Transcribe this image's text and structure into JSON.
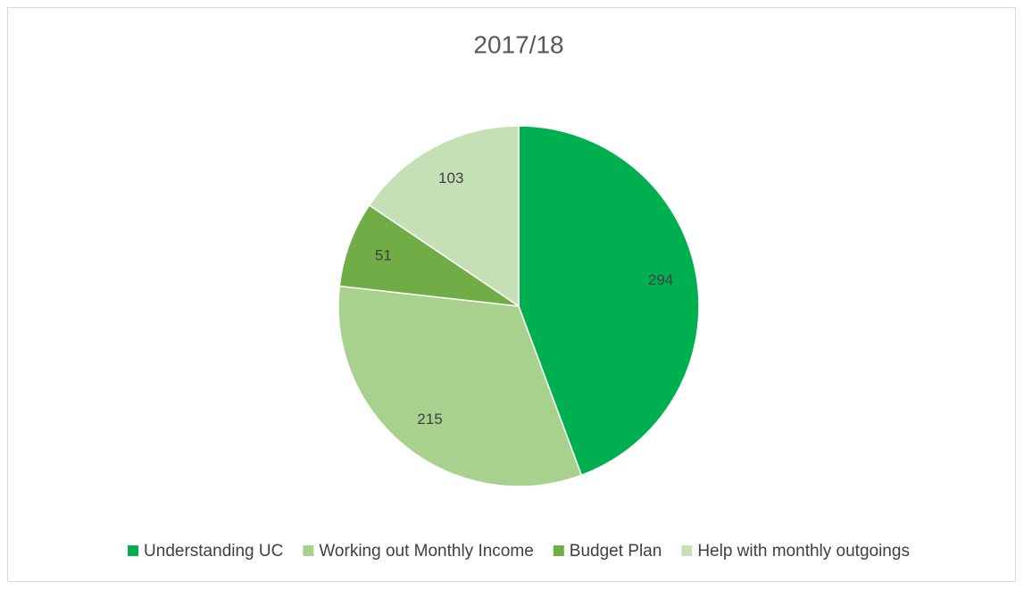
{
  "chart_data": {
    "type": "pie",
    "title": "2017/18",
    "categories": [
      "Understanding UC",
      "Working out Monthly Income",
      "Budget Plan",
      "Help with monthly outgoings"
    ],
    "values": [
      294,
      215,
      51,
      103
    ],
    "colors": [
      "#00b050",
      "#a9d18e",
      "#70ad47",
      "#c5e0b4"
    ],
    "legend": "bottom"
  }
}
